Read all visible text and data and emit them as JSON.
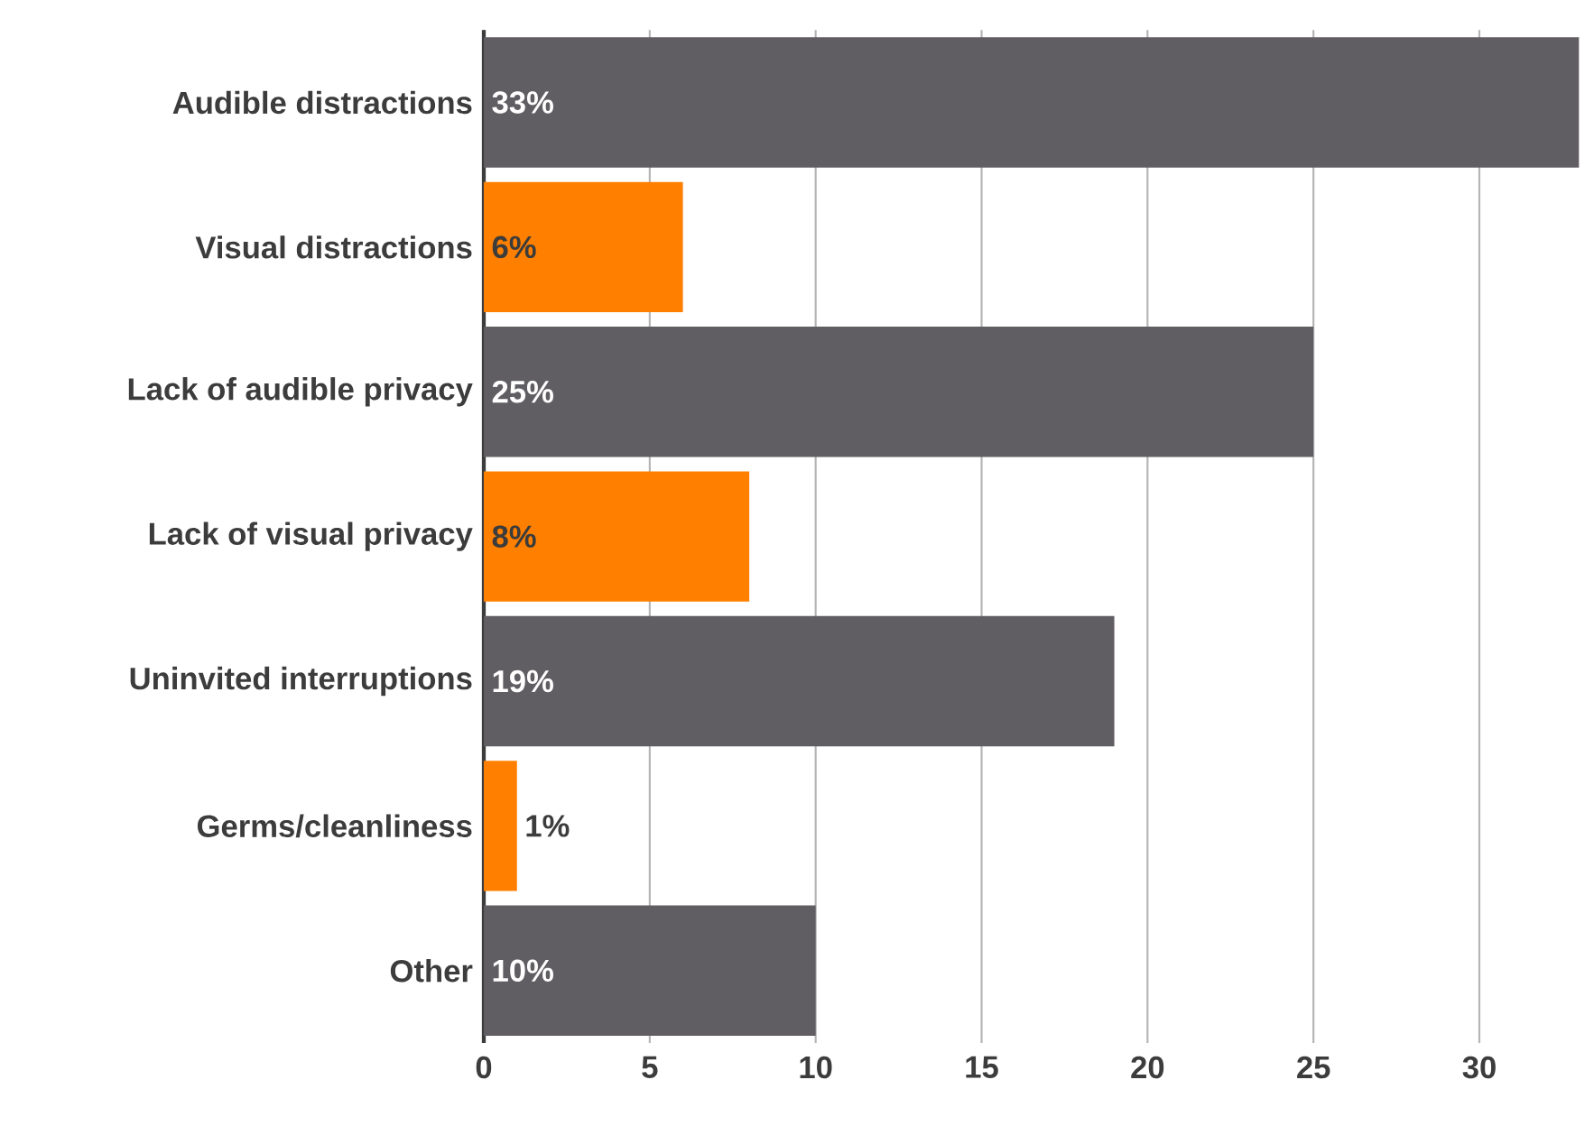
{
  "chart_data": {
    "type": "bar",
    "orientation": "horizontal",
    "categories": [
      "Audible distractions",
      "Visual distractions",
      "Lack of audible privacy",
      "Lack of visual privacy",
      "Uninvited interruptions",
      "Germs/cleanliness",
      "Other"
    ],
    "values": [
      33,
      6,
      25,
      8,
      19,
      1,
      10
    ],
    "colors": [
      "#615e63",
      "#ff8000",
      "#615e63",
      "#ff8000",
      "#615e63",
      "#ff8000",
      "#615e63"
    ],
    "value_labels": [
      "33%",
      "6%",
      "25%",
      "8%",
      "19%",
      "1%",
      "10%"
    ],
    "xlim": [
      0,
      33
    ],
    "xticks": [
      0,
      5,
      10,
      15,
      20,
      25,
      30
    ],
    "grid": "x"
  }
}
